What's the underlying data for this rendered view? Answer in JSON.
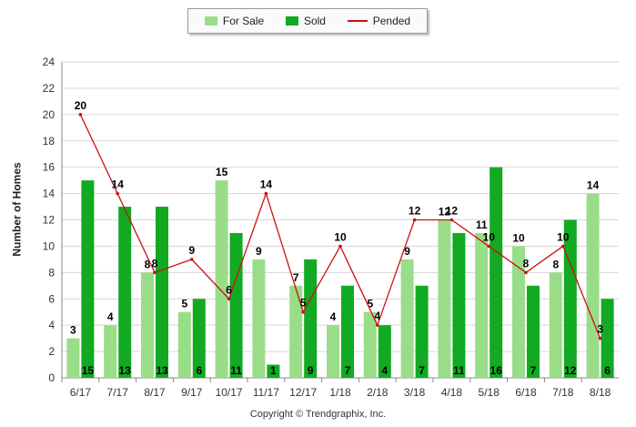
{
  "chart_data": {
    "type": "bar",
    "categories": [
      "6/17",
      "7/17",
      "8/17",
      "9/17",
      "10/17",
      "11/17",
      "12/17",
      "1/18",
      "2/18",
      "3/18",
      "4/18",
      "5/18",
      "6/18",
      "7/18",
      "8/18"
    ],
    "series": [
      {
        "name": "For Sale",
        "type": "bar",
        "color": "#99dd88",
        "values": [
          3,
          4,
          8,
          5,
          15,
          9,
          7,
          4,
          5,
          9,
          12,
          11,
          10,
          8,
          14
        ]
      },
      {
        "name": "Sold",
        "type": "bar",
        "color": "#11aa22",
        "values": [
          15,
          13,
          13,
          6,
          11,
          1,
          9,
          7,
          4,
          7,
          11,
          16,
          7,
          12,
          6
        ]
      },
      {
        "name": "Pended",
        "type": "line",
        "color": "#cc1111",
        "values": [
          20,
          14,
          8,
          9,
          6,
          14,
          5,
          10,
          4,
          12,
          12,
          10,
          8,
          10,
          3
        ]
      }
    ],
    "ylabel": "Number of Homes",
    "ylim": [
      0,
      24
    ],
    "yticks": [
      0,
      2,
      4,
      6,
      8,
      10,
      12,
      14,
      16,
      18,
      20,
      22,
      24
    ],
    "grid": true,
    "legend": "top-center"
  },
  "copyright": "Copyright © Trendgraphix, Inc."
}
